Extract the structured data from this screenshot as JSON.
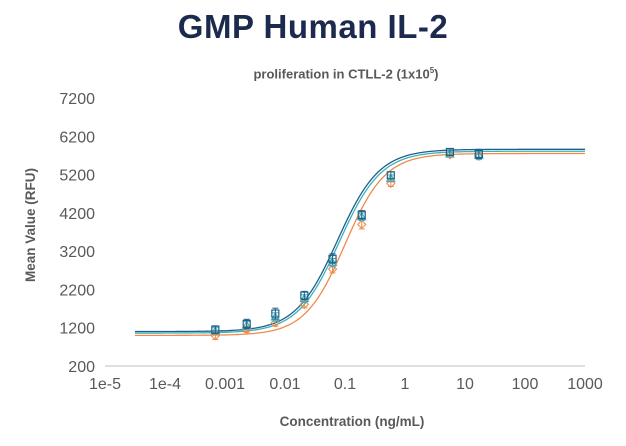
{
  "chart_data": {
    "type": "scatter",
    "title": "GMP Human IL-2",
    "subtitle_main": "proliferation in CTLL-2 (1x10",
    "subtitle_sup": "5",
    "subtitle_end": ")",
    "xlabel": "Concentration (ng/mL)",
    "ylabel": "Mean Value (RFU)",
    "xscale": "log",
    "xlim": [
      1e-05,
      1000
    ],
    "ylim": [
      200,
      7200
    ],
    "xticks": [
      "1e-5",
      "1e-4",
      "0.001",
      "0.01",
      "0.1",
      "1",
      "10",
      "100",
      "1000"
    ],
    "xtick_values": [
      1e-05,
      0.0001,
      0.001,
      0.01,
      0.1,
      1,
      10,
      100,
      1000
    ],
    "yticks": [
      "200",
      "1200",
      "2200",
      "3200",
      "4200",
      "5200",
      "6200",
      "7200"
    ],
    "ytick_values": [
      200,
      1200,
      2200,
      3200,
      4200,
      5200,
      6200,
      7200
    ],
    "grid": false,
    "series": [
      {
        "color": "#1f5f8b",
        "marker": "square",
        "x": [
          0.00069,
          0.0023,
          0.0069,
          0.021,
          0.062,
          0.19,
          0.58,
          5.6,
          17
        ],
        "y": [
          1150,
          1300,
          1570,
          2040,
          3000,
          4150,
          5180,
          5790,
          5740
        ],
        "err": [
          100,
          120,
          140,
          110,
          130,
          110,
          90,
          90,
          120
        ],
        "fit": {
          "bottom": 1100,
          "top": 5860,
          "ec50": 0.075,
          "hill": 1.25
        }
      },
      {
        "color": "#3fb1b9",
        "marker": "triangle",
        "x": [
          0.00069,
          0.0023,
          0.0069,
          0.021,
          0.062,
          0.19,
          0.58,
          5.6,
          17
        ],
        "y": [
          1120,
          1260,
          1480,
          1960,
          2900,
          4100,
          5100,
          5740,
          5700
        ],
        "err": [
          90,
          100,
          110,
          100,
          110,
          100,
          90,
          80,
          100
        ],
        "fit": {
          "bottom": 1060,
          "top": 5810,
          "ec50": 0.08,
          "hill": 1.25
        }
      },
      {
        "color": "#f08a4b",
        "marker": "diamond",
        "x": [
          0.00069,
          0.0023,
          0.0069,
          0.021,
          0.062,
          0.19,
          0.58,
          5.6,
          17
        ],
        "y": [
          990,
          1160,
          1330,
          1810,
          2730,
          3900,
          4970,
          5720,
          5680
        ],
        "err": [
          100,
          80,
          90,
          90,
          100,
          120,
          80,
          70,
          90
        ],
        "fit": {
          "bottom": 1000,
          "top": 5750,
          "ec50": 0.1,
          "hill": 1.3
        }
      }
    ]
  }
}
